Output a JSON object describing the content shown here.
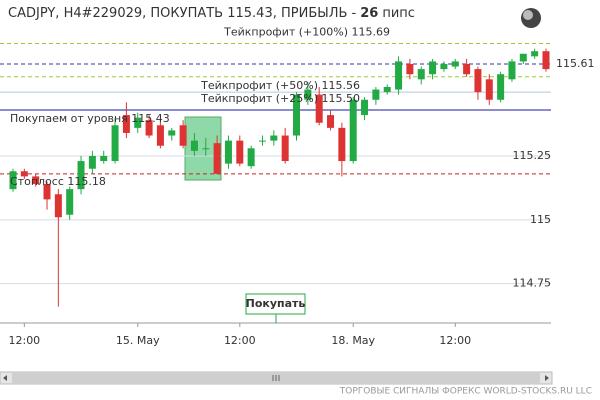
{
  "chart_data": {
    "type": "candlestick",
    "title": "CADJPY, H4#229029, ПОКУПАТЬ 115.43, ПРИБЫЛЬ -",
    "profit": 26,
    "profit_unit": "пипс",
    "categories": [
      null,
      "12:00",
      null,
      null,
      null,
      null,
      null,
      null,
      null,
      null,
      null,
      "15. May",
      null,
      null,
      null,
      null,
      null,
      null,
      null,
      null,
      "12:00",
      null,
      null,
      null,
      null,
      null,
      null,
      null,
      null,
      null,
      "18. May",
      null,
      null,
      null,
      null,
      null,
      null,
      null,
      null,
      "12:00",
      null,
      null,
      null,
      null,
      null,
      null,
      null,
      null
    ],
    "open": [
      115.12,
      115.19,
      115.17,
      115.14,
      115.1,
      115.02,
      115.12,
      115.2,
      115.23,
      115.23,
      115.41,
      115.36,
      115.39,
      115.37,
      115.33,
      115.37,
      115.27,
      115.28,
      115.3,
      115.22,
      115.31,
      115.21,
      115.31,
      115.31,
      115.33,
      115.33,
      115.47,
      115.49,
      115.41,
      115.36,
      115.23,
      115.41,
      115.47,
      115.5,
      115.51,
      115.61,
      115.55,
      115.57,
      115.59,
      115.6,
      115.61,
      115.59,
      115.55,
      115.47,
      115.55,
      115.62,
      115.64,
      115.66
    ],
    "high": [
      115.2,
      115.2,
      115.18,
      115.15,
      115.12,
      115.13,
      115.25,
      115.27,
      115.27,
      115.4,
      115.46,
      115.42,
      115.41,
      115.39,
      115.36,
      115.39,
      115.34,
      115.32,
      115.33,
      115.33,
      115.33,
      115.29,
      115.33,
      115.35,
      115.36,
      115.5,
      115.54,
      115.52,
      115.43,
      115.38,
      115.48,
      115.48,
      115.52,
      115.53,
      115.64,
      115.63,
      115.6,
      115.63,
      115.62,
      115.63,
      115.63,
      115.6,
      115.57,
      115.58,
      115.63,
      115.65,
      115.67,
      115.67
    ],
    "low": [
      115.11,
      115.16,
      115.13,
      115.04,
      114.66,
      115.0,
      115.1,
      115.18,
      115.22,
      115.22,
      115.32,
      115.34,
      115.32,
      115.28,
      115.31,
      115.28,
      115.25,
      115.25,
      115.18,
      115.2,
      115.21,
      115.2,
      115.29,
      115.29,
      115.22,
      115.31,
      115.45,
      115.37,
      115.35,
      115.17,
      115.22,
      115.39,
      115.45,
      115.49,
      115.49,
      115.55,
      115.53,
      115.55,
      115.58,
      115.59,
      115.56,
      115.47,
      115.45,
      115.46,
      115.54,
      115.61,
      115.63,
      115.58
    ],
    "close": [
      115.19,
      115.17,
      115.14,
      115.08,
      115.01,
      115.12,
      115.23,
      115.25,
      115.25,
      115.37,
      115.34,
      115.4,
      115.33,
      115.29,
      115.35,
      115.29,
      115.31,
      115.28,
      115.18,
      115.31,
      115.22,
      115.28,
      115.31,
      115.33,
      115.23,
      115.49,
      115.51,
      115.38,
      115.36,
      115.23,
      115.47,
      115.47,
      115.51,
      115.52,
      115.62,
      115.57,
      115.59,
      115.62,
      115.61,
      115.62,
      115.57,
      115.5,
      115.47,
      115.57,
      115.62,
      115.65,
      115.66,
      115.59
    ],
    "up_color": "#22aa44",
    "down_color": "#dd3333",
    "ylim": [
      114.6,
      115.7
    ],
    "yticks": [
      115.25,
      115,
      114.75
    ],
    "grid": true,
    "levels": [
      {
        "label": "Тейкпрофит (+100%) 115.69",
        "value": 115.69,
        "color": "#99cc33",
        "dashed": true
      },
      {
        "label": "Тейкпрофит (+50%) 115.56",
        "value": 115.56,
        "color": "#99cc33",
        "dashed": true
      },
      {
        "label": "Тейкпрофит (+25%) 115.50",
        "value": 115.5,
        "color": "#b8c8d8",
        "dashed": false
      },
      {
        "label": "Покупаем от уровня 115.43",
        "value": 115.43,
        "color": "#1a1aa0",
        "dashed": false
      },
      {
        "label": "Стоплосс 115.18",
        "value": 115.18,
        "color": "#cc2222",
        "dashed": true
      }
    ],
    "current_price": 115.61,
    "current_color": "#3333aa",
    "signal_label": "Покупать",
    "watermark": "ТОРГОВЫЕ СИГНАЛЫ ФОРЕКС WORLD-STOCKS.RU LLC"
  }
}
